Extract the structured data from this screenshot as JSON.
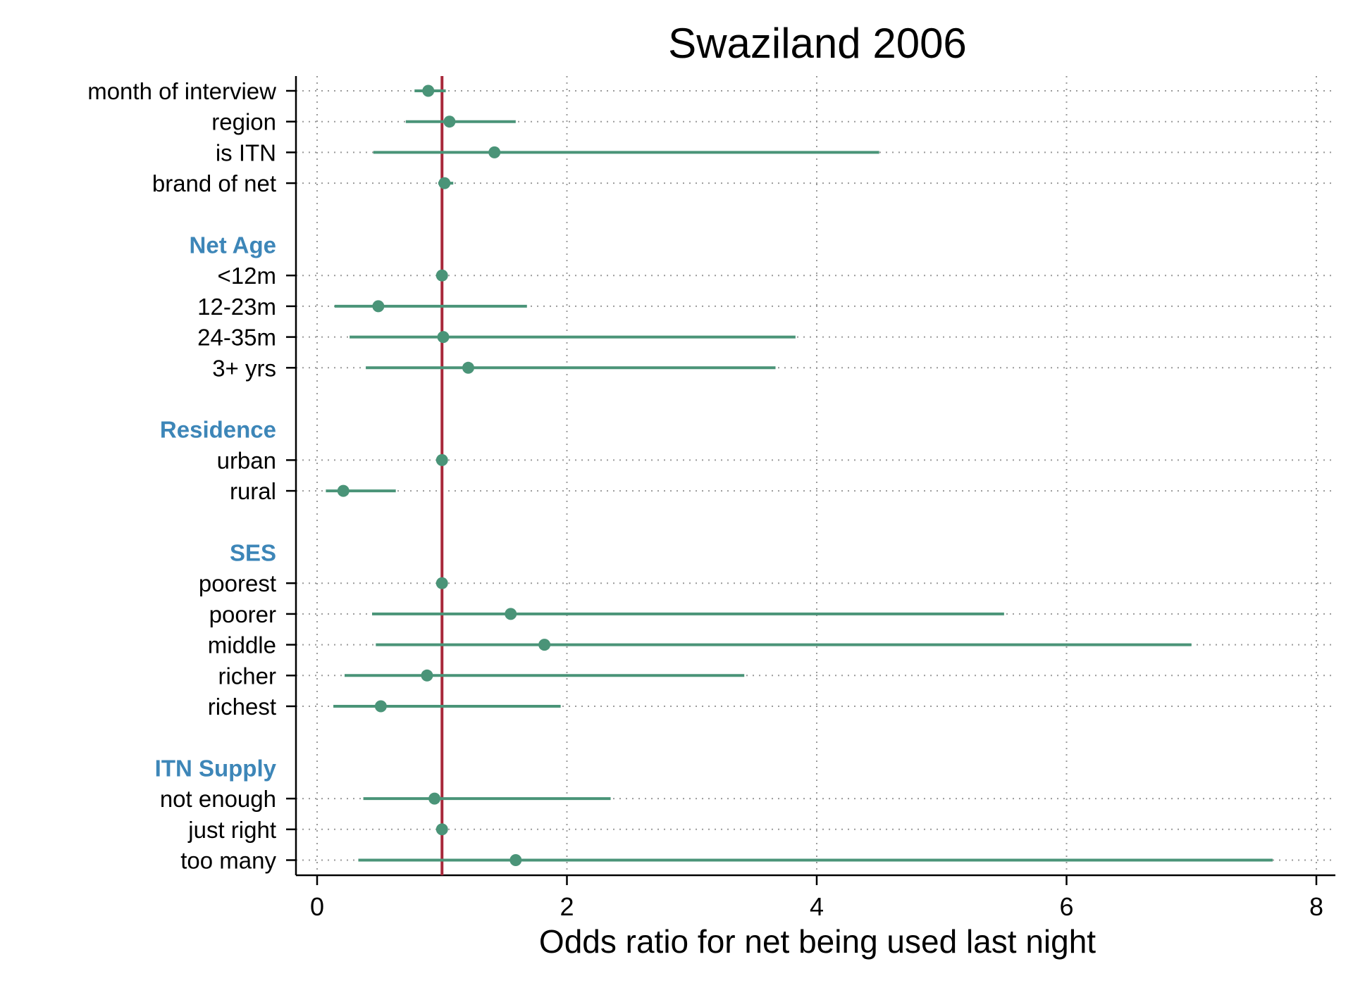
{
  "chart_data": {
    "type": "scatter",
    "subtype": "forest-plot",
    "title": "Swaziland 2006",
    "xlabel": "Odds ratio for net being used last night",
    "ylabel": "",
    "xlim": [
      0,
      8
    ],
    "xticks": [
      0,
      2,
      4,
      6,
      8
    ],
    "reference_line": 1,
    "grid": "dotted, x and y",
    "colors": {
      "marker": "#4a9478",
      "ci": "#4a9478",
      "reference": "#a8283a",
      "group_heading": "#3d86b8",
      "grid": "#9a9a9a"
    },
    "rows": [
      {
        "label": "month of interview",
        "kind": "item",
        "estimate": 0.89,
        "ci": [
          0.78,
          1.03
        ]
      },
      {
        "label": "region",
        "kind": "item",
        "estimate": 1.06,
        "ci": [
          0.71,
          1.59
        ]
      },
      {
        "label": "is ITN",
        "kind": "item",
        "estimate": 1.42,
        "ci": [
          0.45,
          4.5
        ]
      },
      {
        "label": "brand of net",
        "kind": "item",
        "estimate": 1.02,
        "ci": [
          0.97,
          1.09
        ]
      },
      {
        "label": "",
        "kind": "gap"
      },
      {
        "label": "Net Age",
        "kind": "heading"
      },
      {
        "label": "<12m",
        "kind": "item",
        "estimate": 1.0,
        "ci": [
          1.0,
          1.0
        ]
      },
      {
        "label": "12-23m",
        "kind": "item",
        "estimate": 0.49,
        "ci": [
          0.14,
          1.68
        ]
      },
      {
        "label": "24-35m",
        "kind": "item",
        "estimate": 1.01,
        "ci": [
          0.26,
          3.83
        ]
      },
      {
        "label": "3+ yrs",
        "kind": "item",
        "estimate": 1.21,
        "ci": [
          0.39,
          3.67
        ]
      },
      {
        "label": "",
        "kind": "gap"
      },
      {
        "label": "Residence",
        "kind": "heading"
      },
      {
        "label": "urban",
        "kind": "item",
        "estimate": 1.0,
        "ci": [
          1.0,
          1.0
        ]
      },
      {
        "label": "rural",
        "kind": "item",
        "estimate": 0.21,
        "ci": [
          0.07,
          0.63
        ]
      },
      {
        "label": "",
        "kind": "gap"
      },
      {
        "label": "SES",
        "kind": "heading"
      },
      {
        "label": "poorest",
        "kind": "item",
        "estimate": 1.0,
        "ci": [
          1.0,
          1.0
        ]
      },
      {
        "label": "poorer",
        "kind": "item",
        "estimate": 1.55,
        "ci": [
          0.44,
          5.5
        ]
      },
      {
        "label": "middle",
        "kind": "item",
        "estimate": 1.82,
        "ci": [
          0.47,
          7.0
        ]
      },
      {
        "label": "richer",
        "kind": "item",
        "estimate": 0.88,
        "ci": [
          0.22,
          3.42
        ]
      },
      {
        "label": "richest",
        "kind": "item",
        "estimate": 0.51,
        "ci": [
          0.13,
          1.95
        ]
      },
      {
        "label": "",
        "kind": "gap"
      },
      {
        "label": "ITN Supply",
        "kind": "heading"
      },
      {
        "label": "not enough",
        "kind": "item",
        "estimate": 0.94,
        "ci": [
          0.37,
          2.35
        ]
      },
      {
        "label": "just right",
        "kind": "item",
        "estimate": 1.0,
        "ci": [
          1.0,
          1.0
        ]
      },
      {
        "label": "too many",
        "kind": "item",
        "estimate": 1.59,
        "ci": [
          0.33,
          7.65
        ]
      }
    ]
  }
}
